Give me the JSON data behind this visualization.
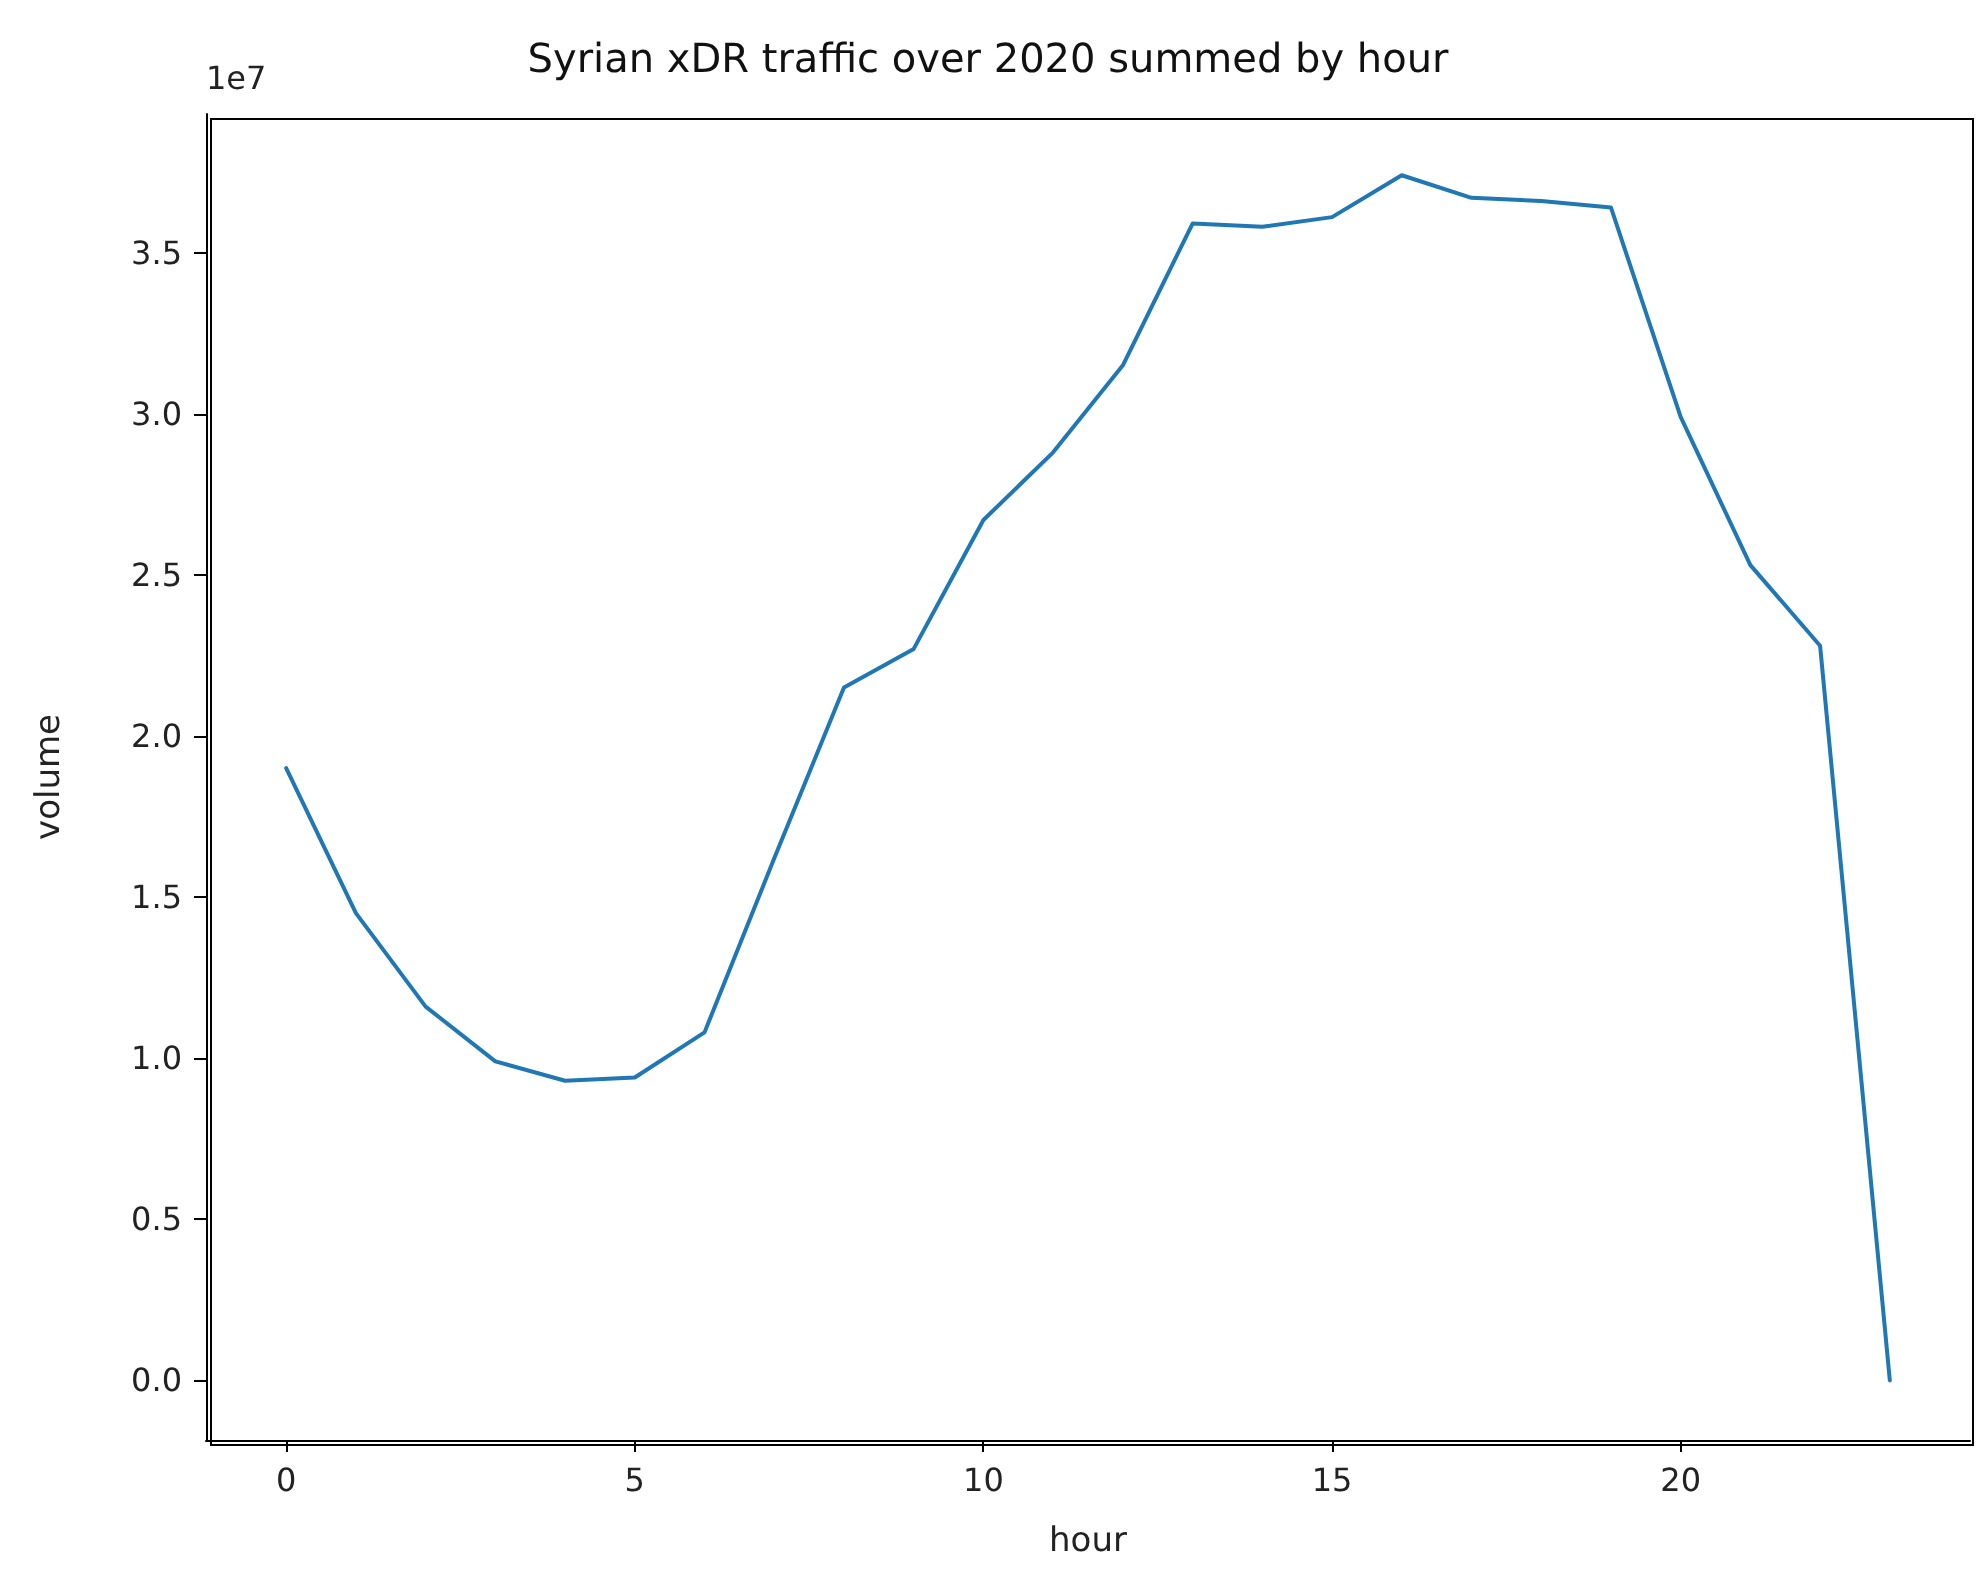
{
  "chart_data": {
    "type": "line",
    "title": "Syrian xDR traffic over 2020 summed by hour",
    "xlabel": "hour",
    "ylabel": "volume",
    "annotations": [
      "1e7"
    ],
    "x": [
      0,
      1,
      2,
      3,
      4,
      5,
      6,
      7,
      8,
      9,
      10,
      11,
      12,
      13,
      14,
      15,
      16,
      17,
      18,
      19,
      20,
      21,
      22,
      23
    ],
    "series": [
      {
        "color": "#1f77b4",
        "values": [
          1.9,
          1.45,
          1.16,
          0.99,
          0.93,
          0.94,
          1.08,
          1.62,
          2.15,
          2.27,
          2.67,
          2.88,
          3.15,
          3.59,
          3.58,
          3.61,
          3.74,
          3.67,
          3.66,
          3.64,
          2.99,
          2.53,
          2.28,
          0
        ]
      }
    ],
    "xlim": [
      -1.15,
      24.15
    ],
    "xticks": [
      0,
      5,
      10,
      15,
      20
    ],
    "ylim": [
      -0.185,
      3.93
    ],
    "yticks": [
      {
        "value": 0,
        "label": "0.0"
      },
      0.5,
      {
        "value": 1,
        "label": "1.0"
      },
      1.5,
      {
        "value": 2,
        "label": "2.0"
      },
      2.5,
      {
        "value": 3,
        "label": "3.0"
      },
      3.5
    ],
    "grid": false,
    "marker": "none",
    "line_style": "solid"
  }
}
